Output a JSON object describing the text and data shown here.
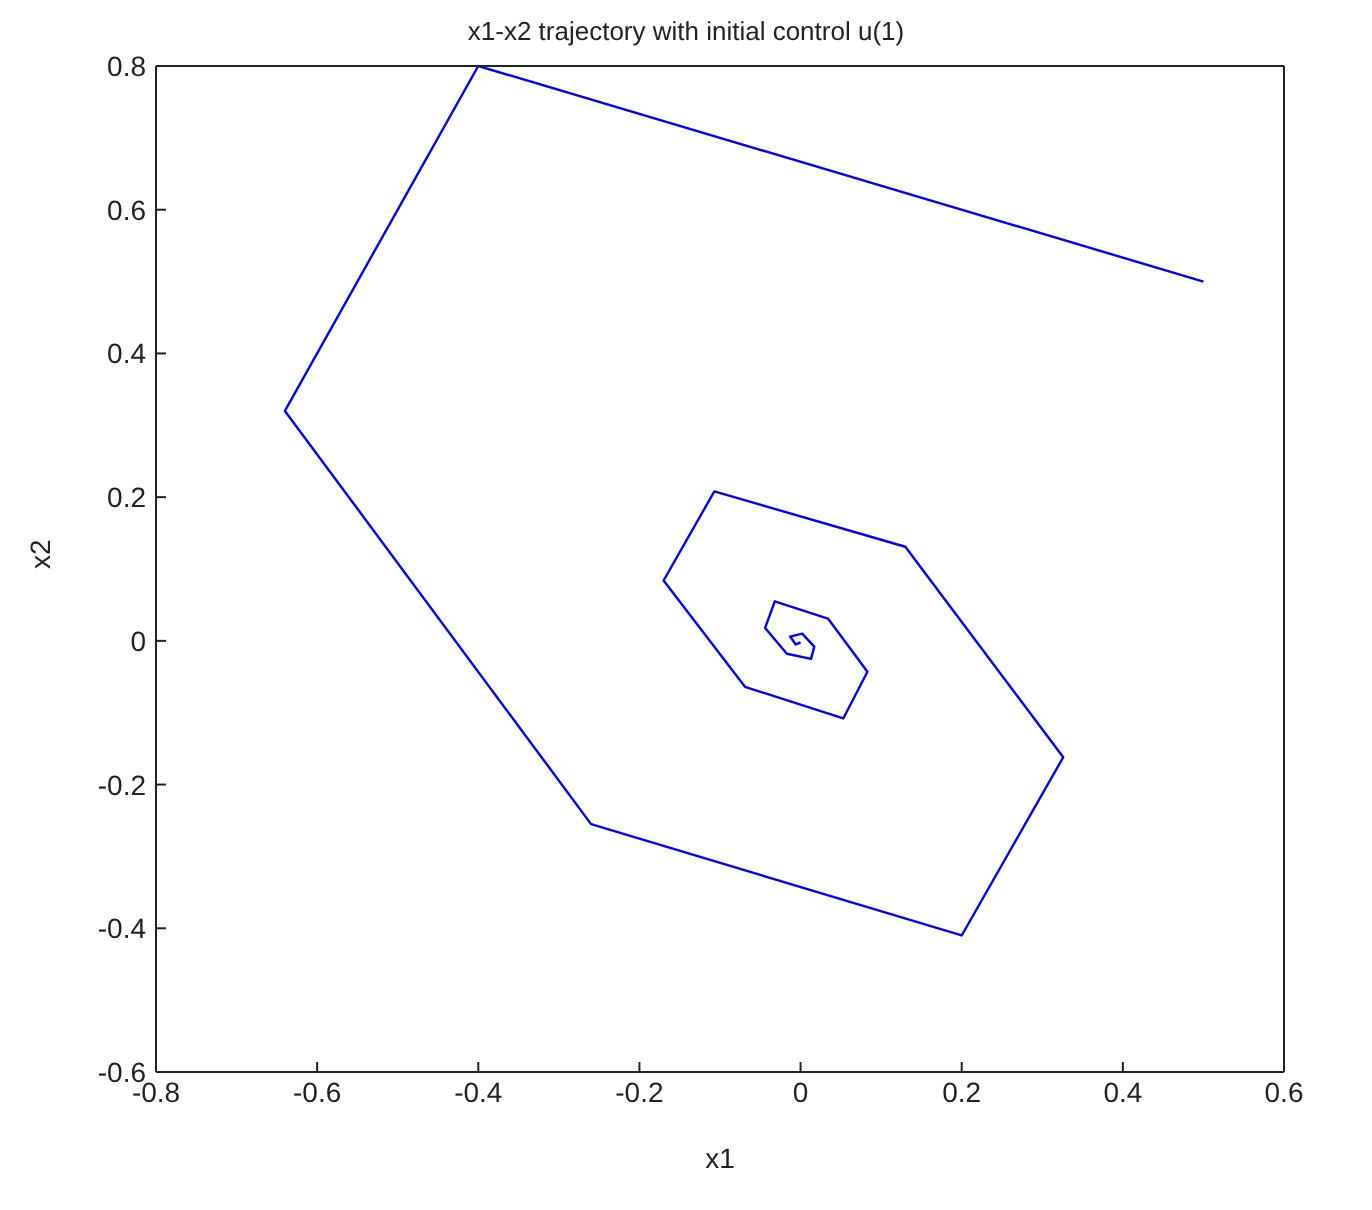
{
  "chart_data": {
    "type": "line",
    "title": "x1-x2 trajectory with initial control u(1)",
    "xlabel": "x1",
    "ylabel": "x2",
    "xlim": [
      -0.8,
      0.6
    ],
    "xticks": [
      -0.8,
      -0.6,
      -0.4,
      -0.2,
      0,
      0.2,
      0.4,
      0.6
    ],
    "ylim": [
      -0.6,
      0.8
    ],
    "yticks": [
      -0.6,
      -0.4,
      -0.2,
      0,
      0.2,
      0.4,
      0.6,
      0.8
    ],
    "marker": "none",
    "line_style": "solid",
    "series": [
      {
        "color": "#0000ff",
        "x": [
          0.5,
          -0.4,
          -0.64,
          -0.26,
          0.2,
          0.326,
          0.13,
          -0.107,
          -0.17,
          -0.069,
          0.053,
          0.083,
          0.034,
          -0.032,
          -0.044,
          -0.017,
          0.013,
          0.017,
          0.002,
          -0.013,
          -0.006,
          0.0
        ],
        "values": [
          0.5,
          0.8,
          0.32,
          -0.255,
          -0.41,
          -0.162,
          0.131,
          0.208,
          0.084,
          -0.064,
          -0.108,
          -0.043,
          0.031,
          0.055,
          0.018,
          -0.018,
          -0.025,
          -0.008,
          0.01,
          0.006,
          -0.005,
          -0.002
        ]
      }
    ]
  }
}
